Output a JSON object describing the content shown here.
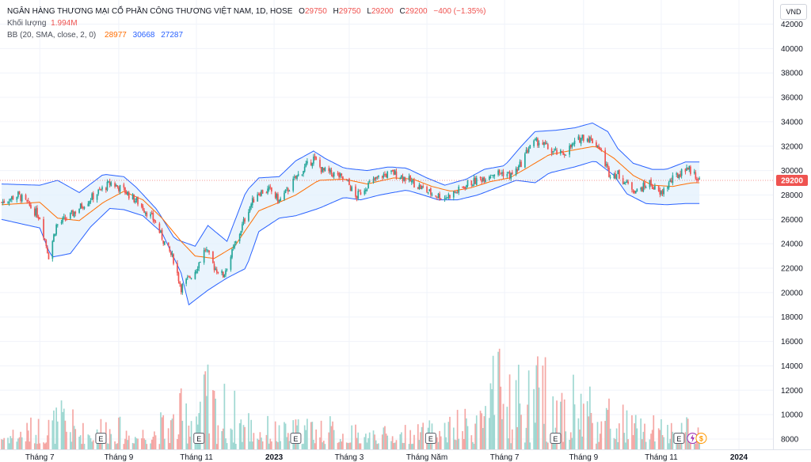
{
  "header": {
    "symbol_line": "NGÂN HÀNG THƯƠNG MẠI CỔ PHẦN CÔNG THƯƠNG VIỆT NAM, 1D, HOSE",
    "ohlc": [
      {
        "label": "O",
        "value": "29750"
      },
      {
        "label": "H",
        "value": "29750"
      },
      {
        "label": "L",
        "value": "29200"
      },
      {
        "label": "C",
        "value": "29200"
      }
    ],
    "change": "−400 (−1.35%)",
    "volume_label": "Khối lượng",
    "volume_value": "1.994M",
    "bb_label": "BB (20, SMA, close, 2, 0)",
    "bb_values": [
      "28977",
      "30668",
      "27287"
    ]
  },
  "currency": "VND",
  "last_price_label": "29200",
  "event_markers": [
    {
      "label": "E",
      "date": "2022-08-18"
    },
    {
      "label": "E",
      "date": "2022-11-03"
    },
    {
      "label": "E",
      "date": "2023-01-18"
    },
    {
      "label": "E",
      "date": "2023-05-04"
    },
    {
      "label": "E",
      "date": "2023-08-10"
    },
    {
      "label": "E",
      "date": "2023-11-15"
    }
  ],
  "extra_marker_icons": [
    {
      "name": "split-lightning-icon",
      "color": "#9c27b0"
    },
    {
      "name": "dividend-icon",
      "color": "#ff9800"
    }
  ],
  "colors": {
    "up": "#26a69a",
    "down": "#ef5350",
    "band": "#2962ff",
    "basis": "#ff6d00",
    "band_fill": "#e3f0fc",
    "price_label": "#ef5350"
  },
  "chart_data": {
    "type": "candlestick",
    "title": "NGÂN HÀNG THƯƠNG MẠI CỔ PHẦN CÔNG THƯƠNG VIỆT NAM, 1D, HOSE",
    "y_range": [
      7000,
      43000
    ],
    "y_ticks": [
      42000,
      40000,
      38000,
      36000,
      34000,
      32000,
      30000,
      28000,
      26000,
      24000,
      22000,
      20000,
      18000,
      16000,
      14000,
      12000,
      10000,
      8000
    ],
    "x_range": [
      "2022-06-01",
      "2024-01-29"
    ],
    "x_ticks": [
      {
        "label": "Tháng 7",
        "date": "2022-07-01"
      },
      {
        "label": "Tháng 9",
        "date": "2022-09-01"
      },
      {
        "label": "Tháng 11",
        "date": "2022-11-01"
      },
      {
        "label": "2023",
        "date": "2023-01-01",
        "bold": true
      },
      {
        "label": "Tháng 3",
        "date": "2023-03-01"
      },
      {
        "label": "Tháng Năm",
        "date": "2023-05-01"
      },
      {
        "label": "Tháng 7",
        "date": "2023-07-01"
      },
      {
        "label": "Tháng 9",
        "date": "2023-09-01"
      },
      {
        "label": "Tháng 11",
        "date": "2023-11-01"
      },
      {
        "label": "2024",
        "date": "2024-01-01",
        "bold": true
      }
    ],
    "close_path": [
      [
        "2022-06-01",
        27400
      ],
      [
        "2022-06-14",
        28000
      ],
      [
        "2022-06-24",
        27000
      ],
      [
        "2022-07-01",
        26200
      ],
      [
        "2022-07-08",
        23000
      ],
      [
        "2022-07-14",
        25500
      ],
      [
        "2022-07-25",
        26300
      ],
      [
        "2022-08-05",
        27300
      ],
      [
        "2022-08-18",
        28400
      ],
      [
        "2022-08-26",
        29000
      ],
      [
        "2022-09-06",
        28300
      ],
      [
        "2022-09-16",
        27400
      ],
      [
        "2022-09-29",
        25900
      ],
      [
        "2022-10-06",
        24300
      ],
      [
        "2022-10-14",
        22700
      ],
      [
        "2022-10-20",
        20400
      ],
      [
        "2022-10-31",
        21800
      ],
      [
        "2022-11-08",
        23600
      ],
      [
        "2022-11-15",
        22100
      ],
      [
        "2022-11-22",
        21400
      ],
      [
        "2022-11-28",
        23000
      ],
      [
        "2022-12-05",
        24900
      ],
      [
        "2022-12-12",
        26900
      ],
      [
        "2022-12-19",
        28200
      ],
      [
        "2022-12-29",
        28400
      ],
      [
        "2023-01-05",
        27500
      ],
      [
        "2023-01-13",
        28600
      ],
      [
        "2023-01-18",
        29400
      ],
      [
        "2023-02-01",
        31000
      ],
      [
        "2023-02-08",
        30000
      ],
      [
        "2023-02-20",
        29600
      ],
      [
        "2023-02-28",
        29000
      ],
      [
        "2023-03-06",
        27800
      ],
      [
        "2023-03-15",
        28800
      ],
      [
        "2023-03-27",
        29600
      ],
      [
        "2023-04-05",
        29800
      ],
      [
        "2023-04-12",
        29500
      ],
      [
        "2023-04-20",
        29000
      ],
      [
        "2023-04-28",
        28500
      ],
      [
        "2023-05-05",
        28100
      ],
      [
        "2023-05-15",
        27800
      ],
      [
        "2023-05-25",
        28300
      ],
      [
        "2023-06-02",
        28900
      ],
      [
        "2023-06-12",
        29300
      ],
      [
        "2023-06-22",
        29800
      ],
      [
        "2023-06-30",
        29800
      ],
      [
        "2023-07-06",
        29600
      ],
      [
        "2023-07-12",
        30200
      ],
      [
        "2023-07-21",
        32100
      ],
      [
        "2023-07-28",
        32400
      ],
      [
        "2023-08-07",
        31600
      ],
      [
        "2023-08-15",
        31300
      ],
      [
        "2023-08-24",
        32100
      ],
      [
        "2023-08-31",
        32800
      ],
      [
        "2023-09-06",
        32600
      ],
      [
        "2023-09-13",
        32000
      ],
      [
        "2023-09-21",
        29800
      ],
      [
        "2023-09-28",
        29700
      ],
      [
        "2023-10-05",
        28900
      ],
      [
        "2023-10-13",
        28300
      ],
      [
        "2023-10-23",
        29000
      ],
      [
        "2023-10-31",
        28000
      ],
      [
        "2023-11-08",
        29100
      ],
      [
        "2023-11-15",
        29700
      ],
      [
        "2023-11-21",
        30300
      ],
      [
        "2023-11-28",
        29600
      ],
      [
        "2023-12-01",
        29200
      ]
    ],
    "bb_upper_path": [
      [
        "2022-06-01",
        28900
      ],
      [
        "2022-07-01",
        28800
      ],
      [
        "2022-07-15",
        29200
      ],
      [
        "2022-08-01",
        28200
      ],
      [
        "2022-08-20",
        29700
      ],
      [
        "2022-09-05",
        29500
      ],
      [
        "2022-09-15",
        28600
      ],
      [
        "2022-10-01",
        26800
      ],
      [
        "2022-10-15",
        24400
      ],
      [
        "2022-10-31",
        23800
      ],
      [
        "2022-11-10",
        25500
      ],
      [
        "2022-11-25",
        24200
      ],
      [
        "2022-12-10",
        28300
      ],
      [
        "2022-12-20",
        29400
      ],
      [
        "2023-01-05",
        29500
      ],
      [
        "2023-01-18",
        30800
      ],
      [
        "2023-02-01",
        31600
      ],
      [
        "2023-02-10",
        31000
      ],
      [
        "2023-02-25",
        30200
      ],
      [
        "2023-03-15",
        30000
      ],
      [
        "2023-04-01",
        30300
      ],
      [
        "2023-04-15",
        30200
      ],
      [
        "2023-05-01",
        29400
      ],
      [
        "2023-05-15",
        28800
      ],
      [
        "2023-06-01",
        29300
      ],
      [
        "2023-06-15",
        30100
      ],
      [
        "2023-07-01",
        30400
      ],
      [
        "2023-07-15",
        32100
      ],
      [
        "2023-07-25",
        33200
      ],
      [
        "2023-08-10",
        33300
      ],
      [
        "2023-08-25",
        33500
      ],
      [
        "2023-09-08",
        33900
      ],
      [
        "2023-09-20",
        33200
      ],
      [
        "2023-09-28",
        31800
      ],
      [
        "2023-10-10",
        30600
      ],
      [
        "2023-10-25",
        30100
      ],
      [
        "2023-11-05",
        30100
      ],
      [
        "2023-11-20",
        30700
      ],
      [
        "2023-12-01",
        30700
      ]
    ],
    "bb_basis_path": [
      [
        "2022-06-01",
        27200
      ],
      [
        "2022-07-01",
        27400
      ],
      [
        "2022-07-15",
        26100
      ],
      [
        "2022-08-01",
        25900
      ],
      [
        "2022-08-20",
        27400
      ],
      [
        "2022-09-05",
        28300
      ],
      [
        "2022-09-20",
        27600
      ],
      [
        "2022-10-05",
        26100
      ],
      [
        "2022-10-20",
        24200
      ],
      [
        "2022-10-31",
        23000
      ],
      [
        "2022-11-15",
        22800
      ],
      [
        "2022-12-01",
        23800
      ],
      [
        "2022-12-20",
        26700
      ],
      [
        "2023-01-05",
        27400
      ],
      [
        "2023-01-18",
        28000
      ],
      [
        "2023-02-05",
        29200
      ],
      [
        "2023-02-25",
        29300
      ],
      [
        "2023-03-15",
        28900
      ],
      [
        "2023-04-05",
        29400
      ],
      [
        "2023-04-20",
        29300
      ],
      [
        "2023-05-05",
        28700
      ],
      [
        "2023-05-20",
        28300
      ],
      [
        "2023-06-05",
        28600
      ],
      [
        "2023-06-20",
        29100
      ],
      [
        "2023-07-05",
        29400
      ],
      [
        "2023-07-20",
        30300
      ],
      [
        "2023-08-05",
        31300
      ],
      [
        "2023-08-25",
        31700
      ],
      [
        "2023-09-10",
        32000
      ],
      [
        "2023-09-25",
        31000
      ],
      [
        "2023-10-10",
        29600
      ],
      [
        "2023-10-25",
        28800
      ],
      [
        "2023-11-10",
        28700
      ],
      [
        "2023-11-25",
        29000
      ],
      [
        "2023-12-01",
        29000
      ]
    ],
    "bb_lower_path": [
      [
        "2022-06-01",
        26000
      ],
      [
        "2022-07-01",
        25300
      ],
      [
        "2022-07-10",
        22900
      ],
      [
        "2022-07-25",
        23200
      ],
      [
        "2022-08-10",
        25400
      ],
      [
        "2022-08-25",
        26900
      ],
      [
        "2022-09-05",
        26800
      ],
      [
        "2022-09-20",
        26300
      ],
      [
        "2022-10-05",
        24900
      ],
      [
        "2022-10-20",
        21600
      ],
      [
        "2022-10-26",
        19000
      ],
      [
        "2022-11-10",
        20200
      ],
      [
        "2022-11-25",
        21200
      ],
      [
        "2022-12-10",
        22000
      ],
      [
        "2022-12-20",
        25000
      ],
      [
        "2023-01-05",
        26100
      ],
      [
        "2023-01-18",
        26300
      ],
      [
        "2023-02-05",
        26900
      ],
      [
        "2023-02-25",
        27800
      ],
      [
        "2023-03-10",
        27600
      ],
      [
        "2023-03-25",
        28000
      ],
      [
        "2023-04-15",
        28400
      ],
      [
        "2023-04-28",
        28000
      ],
      [
        "2023-05-10",
        27600
      ],
      [
        "2023-05-25",
        27600
      ],
      [
        "2023-06-10",
        28000
      ],
      [
        "2023-06-25",
        28600
      ],
      [
        "2023-07-10",
        29200
      ],
      [
        "2023-07-25",
        29000
      ],
      [
        "2023-08-05",
        29800
      ],
      [
        "2023-08-25",
        30300
      ],
      [
        "2023-09-10",
        30800
      ],
      [
        "2023-09-25",
        29600
      ],
      [
        "2023-10-05",
        28100
      ],
      [
        "2023-10-20",
        27300
      ],
      [
        "2023-11-05",
        27200
      ],
      [
        "2023-11-20",
        27300
      ],
      [
        "2023-12-01",
        27300
      ]
    ],
    "volume_peaks": [
      [
        "2022-06-01",
        9000
      ],
      [
        "2022-07-01",
        10200
      ],
      [
        "2022-07-20",
        11500
      ],
      [
        "2022-08-05",
        9500
      ],
      [
        "2022-08-20",
        10500
      ],
      [
        "2022-09-15",
        9200
      ],
      [
        "2022-10-10",
        10800
      ],
      [
        "2022-10-25",
        13000
      ],
      [
        "2022-11-05",
        14900
      ],
      [
        "2022-11-15",
        13800
      ],
      [
        "2022-12-01",
        12200
      ],
      [
        "2022-12-20",
        10200
      ],
      [
        "2023-01-10",
        9500
      ],
      [
        "2023-02-01",
        10500
      ],
      [
        "2023-03-01",
        9300
      ],
      [
        "2023-04-01",
        9100
      ],
      [
        "2023-05-01",
        9500
      ],
      [
        "2023-06-01",
        10700
      ],
      [
        "2023-06-20",
        14900
      ],
      [
        "2023-07-01",
        16300
      ],
      [
        "2023-07-15",
        14800
      ],
      [
        "2023-08-01",
        15700
      ],
      [
        "2023-08-15",
        14900
      ],
      [
        "2023-09-01",
        14700
      ],
      [
        "2023-09-20",
        11900
      ],
      [
        "2023-10-10",
        10600
      ],
      [
        "2023-11-01",
        9800
      ],
      [
        "2023-11-20",
        10100
      ],
      [
        "2023-12-01",
        9500
      ]
    ]
  }
}
